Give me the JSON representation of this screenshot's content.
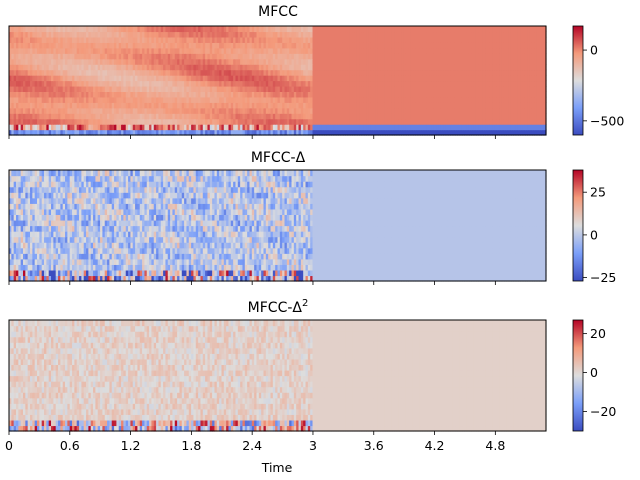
{
  "chart_data": [
    {
      "type": "heatmap",
      "title": "MFCC",
      "colorbar": {
        "range": [
          -600,
          170
        ],
        "ticks": [
          0,
          -500
        ],
        "tick_labels": [
          "0",
          "−500"
        ]
      },
      "time_range": [
        0,
        5.3
      ],
      "note_values": "2D coefficient matrix (~20 coeffs x ~230 frames); activity until ~3.0 s, constant afterwards"
    },
    {
      "type": "heatmap",
      "title": "MFCC-Δ",
      "colorbar": {
        "range": [
          -27,
          38
        ],
        "ticks": [
          25,
          0,
          -25
        ],
        "tick_labels": [
          "25",
          "0",
          "−25"
        ]
      },
      "time_range": [
        0,
        5.3
      ]
    },
    {
      "type": "heatmap",
      "title": "MFCC-Δ",
      "title_superscript": "2",
      "colorbar": {
        "range": [
          -30,
          27
        ],
        "ticks": [
          20,
          0,
          -20
        ],
        "tick_labels": [
          "20",
          "0",
          "−20"
        ]
      },
      "time_range": [
        0,
        5.3
      ],
      "xlabel": "Time",
      "x_ticks": [
        0,
        0.6,
        1.2,
        1.8,
        2.4,
        3.0,
        3.6,
        4.2,
        4.8
      ],
      "x_tick_labels": [
        "0",
        "0.6",
        "1.2",
        "1.8",
        "2.4",
        "3",
        "3.6",
        "4.2",
        "4.8"
      ]
    }
  ],
  "colormap": "coolwarm",
  "colors": {
    "low": "#3b4cc0",
    "mid": "#dddddd",
    "high": "#b40426"
  }
}
